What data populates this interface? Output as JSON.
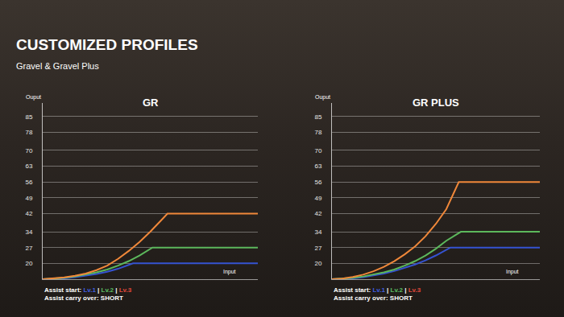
{
  "header": {
    "title": "CUSTOMIZED PROFILES",
    "subtitle": "Gravel & Gravel Plus"
  },
  "chart_data": [
    {
      "type": "line",
      "title": "GR",
      "y_label": "Ouput",
      "x_label": "Input",
      "xlim": [
        0,
        100
      ],
      "xticks": [],
      "ylim": [
        13,
        91
      ],
      "yticks": [
        20,
        27,
        34,
        42,
        49,
        56,
        63,
        70,
        78,
        85
      ],
      "grid": true,
      "tick_labels": "y",
      "series": [
        {
          "name": "Lv.1",
          "color": "#3553d1",
          "x": [
            0,
            5,
            10,
            15,
            20,
            25,
            30,
            35,
            42,
            100
          ],
          "values": [
            13,
            13.1,
            13.4,
            13.9,
            14.5,
            15.3,
            16.3,
            17.6,
            20,
            20
          ]
        },
        {
          "name": "Lv.2",
          "color": "#5cb85c",
          "x": [
            0,
            5,
            10,
            15,
            20,
            25,
            30,
            35,
            40,
            45,
            51,
            100
          ],
          "values": [
            13,
            13.2,
            13.6,
            14.2,
            15,
            16,
            17.3,
            19,
            21,
            23.5,
            27,
            27
          ]
        },
        {
          "name": "Lv.3",
          "color": "#f0883a",
          "x": [
            0,
            5,
            10,
            15,
            20,
            25,
            30,
            35,
            40,
            45,
            50,
            55,
            58,
            100
          ],
          "values": [
            13,
            13.3,
            13.8,
            14.5,
            15.5,
            17,
            19,
            22,
            25.5,
            29.5,
            34,
            39,
            42,
            42
          ]
        }
      ],
      "assist_start": {
        "label": "Assist start:",
        "separator": "|",
        "colors": [
          "#3f5fe0",
          "#5cbf62",
          "#e24a3c"
        ]
      },
      "assist_carry_over": "Assist carry over: SHORT"
    },
    {
      "type": "line",
      "title": "GR PLUS",
      "y_label": "Ouput",
      "x_label": "Input",
      "xlim": [
        0,
        100
      ],
      "xticks": [],
      "ylim": [
        13,
        91
      ],
      "yticks": [
        20,
        27,
        34,
        42,
        49,
        56,
        63,
        70,
        78,
        85
      ],
      "grid": true,
      "tick_labels": "y",
      "series": [
        {
          "name": "Lv.1",
          "color": "#3553d1",
          "x": [
            0,
            5,
            10,
            15,
            20,
            25,
            30,
            35,
            40,
            45,
            50,
            57,
            100
          ],
          "values": [
            13,
            13.1,
            13.4,
            13.9,
            14.6,
            15.5,
            16.6,
            18,
            19.5,
            21.3,
            23.5,
            27,
            27
          ]
        },
        {
          "name": "Lv.2",
          "color": "#5cb85c",
          "x": [
            0,
            5,
            10,
            15,
            20,
            25,
            30,
            35,
            40,
            45,
            50,
            55,
            62,
            100
          ],
          "values": [
            13,
            13.2,
            13.6,
            14.2,
            15,
            16,
            17.3,
            19,
            21,
            23.5,
            26.5,
            30,
            34,
            34
          ]
        },
        {
          "name": "Lv.3",
          "color": "#f0883a",
          "x": [
            0,
            5,
            10,
            15,
            20,
            25,
            30,
            35,
            40,
            45,
            50,
            55,
            61,
            100
          ],
          "values": [
            13,
            13.3,
            14,
            15,
            16.5,
            18.5,
            21,
            24,
            27.5,
            32,
            37.5,
            44,
            56,
            56
          ]
        }
      ],
      "assist_start": {
        "label": "Assist start:",
        "separator": "|",
        "colors": [
          "#3f5fe0",
          "#5cbf62",
          "#e24a3c"
        ]
      },
      "assist_carry_over": "Assist carry over: SHORT"
    }
  ]
}
